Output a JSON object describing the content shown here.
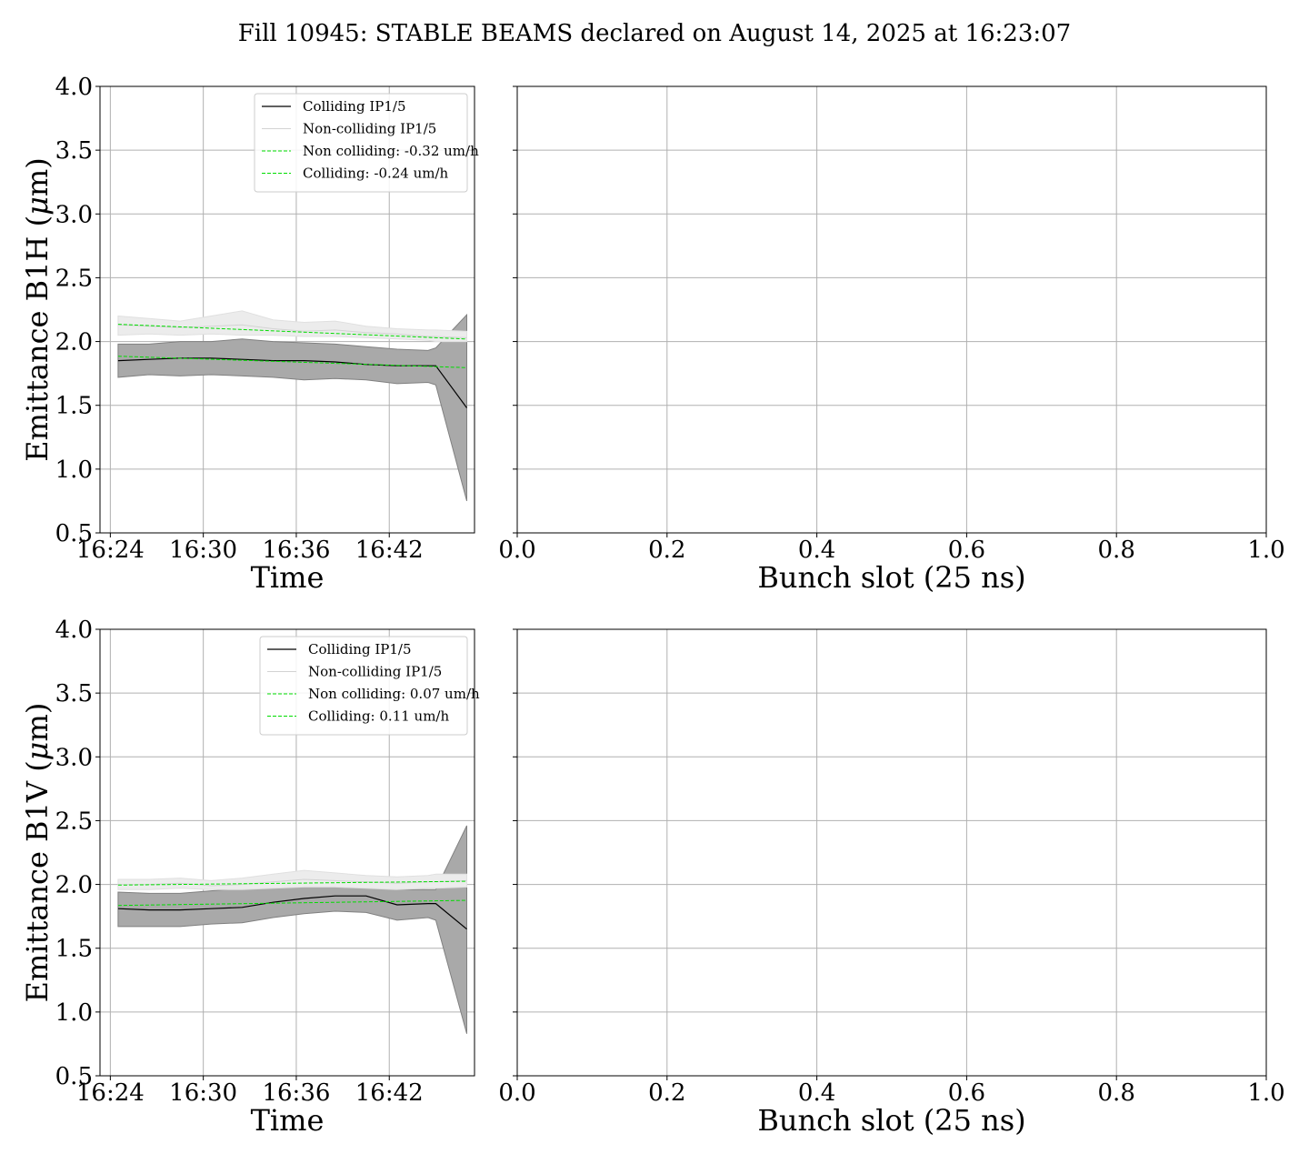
{
  "figure_title": "Fill 10945: STABLE BEAMS declared on August 14, 2025 at 16:23:07",
  "colors": {
    "colliding_line": "#000000",
    "colliding_band": "#a9a9a9",
    "noncolliding_line": "#d3d3d3",
    "noncolliding_band": "#ececec",
    "fit_line": "#00dd00",
    "grid": "#b0b0b0"
  },
  "chart_data": [
    {
      "id": "b1h-time",
      "type": "line",
      "xlabel": "Time",
      "ylabel": "Emittance B1H (μm)",
      "ylabel_main": "Emittance B1H (",
      "ylabel_mu": "μ",
      "ylabel_end": "m)",
      "x_unit": "minutes",
      "xlim": [
        "16:23:20",
        "16:47:30"
      ],
      "ylim": [
        0.5,
        4.0
      ],
      "x_ticks": [
        "16:24",
        "16:30",
        "16:36",
        "16:42"
      ],
      "y_ticks": [
        "0.5",
        "1.0",
        "1.5",
        "2.0",
        "2.5",
        "3.0",
        "3.5",
        "4.0"
      ],
      "grid": true,
      "legend_position": "upper-right",
      "x": [
        "16:24:30",
        "16:26:30",
        "16:28:30",
        "16:30:30",
        "16:32:30",
        "16:34:30",
        "16:36:30",
        "16:38:30",
        "16:40:30",
        "16:42:30",
        "16:44:30",
        "16:45",
        "16:47"
      ],
      "series": [
        {
          "name": "Colliding IP1/5",
          "role": "colliding",
          "values": [
            1.85,
            1.86,
            1.87,
            1.87,
            1.86,
            1.85,
            1.85,
            1.84,
            1.82,
            1.81,
            1.81,
            1.81,
            1.48
          ],
          "band_lower": [
            1.72,
            1.74,
            1.73,
            1.74,
            1.73,
            1.72,
            1.7,
            1.71,
            1.7,
            1.67,
            1.68,
            1.66,
            0.75
          ],
          "band_upper": [
            1.98,
            1.98,
            2.0,
            2.0,
            2.02,
            2.0,
            1.99,
            1.98,
            1.96,
            1.94,
            1.93,
            1.95,
            2.21
          ]
        },
        {
          "name": "Non-colliding IP1/5",
          "role": "noncolliding",
          "values": [
            2.13,
            2.12,
            2.11,
            2.12,
            2.13,
            2.1,
            2.08,
            2.09,
            2.07,
            2.06,
            2.04,
            2.04,
            2.03
          ],
          "band_lower": [
            2.05,
            2.06,
            2.05,
            2.06,
            2.05,
            2.05,
            2.04,
            2.04,
            2.03,
            2.02,
            2.01,
            2.0,
            2.0
          ],
          "band_upper": [
            2.2,
            2.18,
            2.16,
            2.2,
            2.24,
            2.17,
            2.15,
            2.16,
            2.12,
            2.1,
            2.09,
            2.09,
            2.08
          ]
        },
        {
          "name": "Non colliding: -0.32 um/h",
          "role": "fit",
          "x": [
            "16:24:30",
            "16:47"
          ],
          "values": [
            2.135,
            2.02
          ]
        },
        {
          "name": "Colliding: -0.24 um/h",
          "role": "fit",
          "x": [
            "16:24:30",
            "16:47"
          ],
          "values": [
            1.885,
            1.795
          ]
        }
      ]
    },
    {
      "id": "b1h-bunch",
      "type": "scatter",
      "xlabel": "Bunch slot (25 ns)",
      "xlim": [
        0,
        1
      ],
      "ylim": [
        0.5,
        4.0
      ],
      "x_ticks": [
        "0.0",
        "0.2",
        "0.4",
        "0.6",
        "0.8",
        "1.0"
      ],
      "grid": true,
      "series": []
    },
    {
      "id": "b1v-time",
      "type": "line",
      "xlabel": "Time",
      "ylabel": "Emittance B1V (μm)",
      "ylabel_main": "Emittance B1V (",
      "ylabel_mu": "μ",
      "ylabel_end": "m)",
      "x_unit": "minutes",
      "xlim": [
        "16:23:20",
        "16:47:30"
      ],
      "ylim": [
        0.5,
        4.0
      ],
      "x_ticks": [
        "16:24",
        "16:30",
        "16:36",
        "16:42"
      ],
      "y_ticks": [
        "0.5",
        "1.0",
        "1.5",
        "2.0",
        "2.5",
        "3.0",
        "3.5",
        "4.0"
      ],
      "grid": true,
      "legend_position": "upper-right",
      "x": [
        "16:24:30",
        "16:26:30",
        "16:28:30",
        "16:30:30",
        "16:32:30",
        "16:34:30",
        "16:36:30",
        "16:38:30",
        "16:40:30",
        "16:42:30",
        "16:44:30",
        "16:45",
        "16:47"
      ],
      "series": [
        {
          "name": "Colliding IP1/5",
          "role": "colliding",
          "values": [
            1.81,
            1.8,
            1.8,
            1.81,
            1.82,
            1.86,
            1.89,
            1.91,
            1.91,
            1.84,
            1.85,
            1.85,
            1.65
          ],
          "band_lower": [
            1.67,
            1.67,
            1.67,
            1.69,
            1.7,
            1.74,
            1.77,
            1.79,
            1.78,
            1.72,
            1.74,
            1.72,
            0.83
          ],
          "band_upper": [
            1.94,
            1.93,
            1.93,
            1.95,
            1.97,
            2.0,
            2.01,
            2.03,
            2.03,
            1.96,
            1.96,
            1.96,
            2.46
          ]
        },
        {
          "name": "Non-colliding IP1/5",
          "role": "noncolliding",
          "values": [
            2.0,
            2.0,
            2.01,
            1.99,
            2.0,
            2.02,
            2.04,
            2.03,
            2.02,
            2.01,
            2.02,
            2.02,
            2.03
          ],
          "band_lower": [
            1.96,
            1.96,
            1.97,
            1.96,
            1.96,
            1.97,
            1.98,
            1.98,
            1.97,
            1.96,
            1.97,
            1.97,
            1.98
          ],
          "band_upper": [
            2.04,
            2.04,
            2.05,
            2.03,
            2.05,
            2.08,
            2.11,
            2.09,
            2.07,
            2.06,
            2.07,
            2.08,
            2.08
          ]
        },
        {
          "name": "Non colliding: 0.07 um/h",
          "role": "fit",
          "x": [
            "16:24:30",
            "16:47"
          ],
          "values": [
            1.995,
            2.025
          ]
        },
        {
          "name": "Colliding: 0.11 um/h",
          "role": "fit",
          "x": [
            "16:24:30",
            "16:47"
          ],
          "values": [
            1.835,
            1.875
          ]
        }
      ]
    },
    {
      "id": "b1v-bunch",
      "type": "scatter",
      "xlabel": "Bunch slot (25 ns)",
      "xlim": [
        0,
        1
      ],
      "ylim": [
        0.5,
        4.0
      ],
      "x_ticks": [
        "0.0",
        "0.2",
        "0.4",
        "0.6",
        "0.8",
        "1.0"
      ],
      "grid": true,
      "series": []
    }
  ]
}
